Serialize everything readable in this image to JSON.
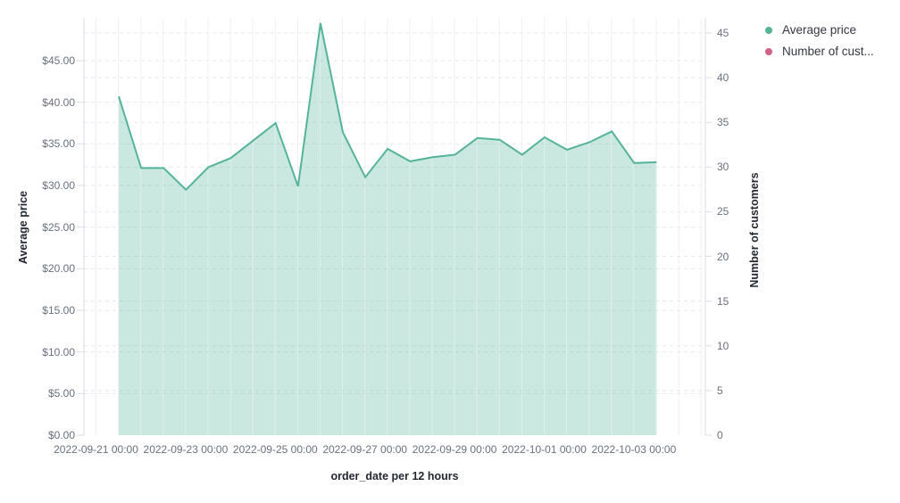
{
  "chart_data": {
    "type": "area",
    "title": "",
    "xlabel": "order_date per 12 hours",
    "ylabel_left": "Average price",
    "ylabel_right": "Number of customers",
    "grid": true,
    "legend_position": "top-right",
    "x": [
      "2022-09-21 12:00",
      "2022-09-22 00:00",
      "2022-09-22 12:00",
      "2022-09-23 00:00",
      "2022-09-23 12:00",
      "2022-09-24 00:00",
      "2022-09-24 12:00",
      "2022-09-25 00:00",
      "2022-09-25 12:00",
      "2022-09-26 00:00",
      "2022-09-26 12:00",
      "2022-09-27 00:00",
      "2022-09-27 12:00",
      "2022-09-28 00:00",
      "2022-09-28 12:00",
      "2022-09-29 00:00",
      "2022-09-29 12:00",
      "2022-09-30 00:00",
      "2022-09-30 12:00",
      "2022-10-01 00:00",
      "2022-10-01 12:00",
      "2022-10-02 00:00",
      "2022-10-02 12:00",
      "2022-10-03 00:00",
      "2022-10-03 12:00"
    ],
    "series": [
      {
        "name": "Average price",
        "axis": "left",
        "color": "#54B399",
        "fill_opacity": 0.3,
        "values": [
          40.7,
          32.1,
          32.1,
          29.5,
          32.2,
          33.3,
          35.4,
          37.5,
          29.9,
          49.5,
          36.4,
          31.0,
          34.4,
          32.9,
          33.4,
          33.7,
          35.7,
          35.5,
          33.7,
          35.8,
          34.3,
          35.2,
          36.5,
          32.7,
          32.8
        ]
      },
      {
        "name": "Number of customers",
        "axis": "right",
        "color": "#D36086",
        "values": []
      }
    ],
    "left_axis": {
      "ticks": [
        "$0.00",
        "$5.00",
        "$10.00",
        "$15.00",
        "$20.00",
        "$25.00",
        "$30.00",
        "$35.00",
        "$40.00",
        "$45.00"
      ],
      "range": [
        0,
        50.2
      ]
    },
    "right_axis": {
      "ticks": [
        "0",
        "5",
        "10",
        "15",
        "20",
        "25",
        "30",
        "35",
        "40",
        "45"
      ],
      "range": [
        0,
        46.8
      ]
    },
    "x_tick_labels": [
      "2022-09-21 00:00",
      "2022-09-23 00:00",
      "2022-09-25 00:00",
      "2022-09-27 00:00",
      "2022-09-29 00:00",
      "2022-10-01 00:00",
      "2022-10-03 00:00"
    ],
    "legend": [
      {
        "label": "Average price",
        "color": "#54B399"
      },
      {
        "label": "Number of cust...",
        "color": "#D36086"
      }
    ],
    "colors": {
      "line": "#54B399",
      "vertical_grid": "#eef1f4",
      "horizontal_grid": "#e4eaf1",
      "axis_line": "#d8dee8",
      "tick_text": "#69707d",
      "title_text": "#232730"
    }
  }
}
